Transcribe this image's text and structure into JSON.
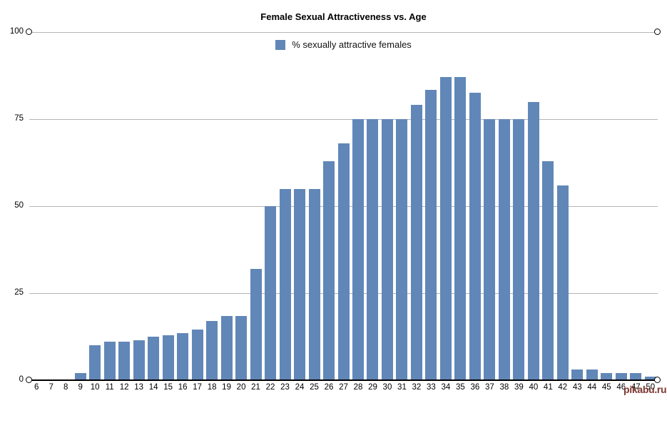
{
  "title": "Female Sexual Attractiveness vs. Age",
  "watermark": {
    "text": "pikabu.ru",
    "color": "#6f231d"
  },
  "colors": {
    "bar": "#6187b8",
    "gridline": "#b5b5b5",
    "axis": "#000000",
    "handle_fill": "#ffffff",
    "handle_stroke": "#000000"
  },
  "chart_data": {
    "type": "bar",
    "title": "Female Sexual Attractiveness vs. Age",
    "legend": [
      {
        "label": "% sexually attractive females",
        "color": "#6187b8"
      }
    ],
    "legend_position": "top-center",
    "xlabel": "",
    "ylabel": "",
    "ylim": [
      0,
      100
    ],
    "yticks": [
      0,
      25,
      50,
      75,
      100
    ],
    "grid": true,
    "axis_end_handles": true,
    "categories": [
      "6",
      "7",
      "8",
      "9",
      "10",
      "11",
      "12",
      "13",
      "14",
      "15",
      "16",
      "17",
      "18",
      "19",
      "20",
      "21",
      "22",
      "23",
      "24",
      "25",
      "26",
      "27",
      "28",
      "29",
      "30",
      "31",
      "32",
      "33",
      "34",
      "35",
      "36",
      "37",
      "38",
      "39",
      "40",
      "41",
      "42",
      "43",
      "44",
      "45",
      "46",
      "47",
      "50"
    ],
    "values": [
      0,
      0,
      0,
      2,
      10,
      11,
      11,
      11.5,
      12.5,
      13,
      13.5,
      14.5,
      17,
      18.5,
      18.5,
      32,
      50,
      55,
      55,
      55,
      63,
      68,
      75,
      75,
      75,
      75,
      79,
      83.5,
      87,
      87,
      82.5,
      75,
      75,
      75,
      80,
      63,
      56,
      3,
      3,
      2,
      2,
      2,
      1
    ]
  }
}
